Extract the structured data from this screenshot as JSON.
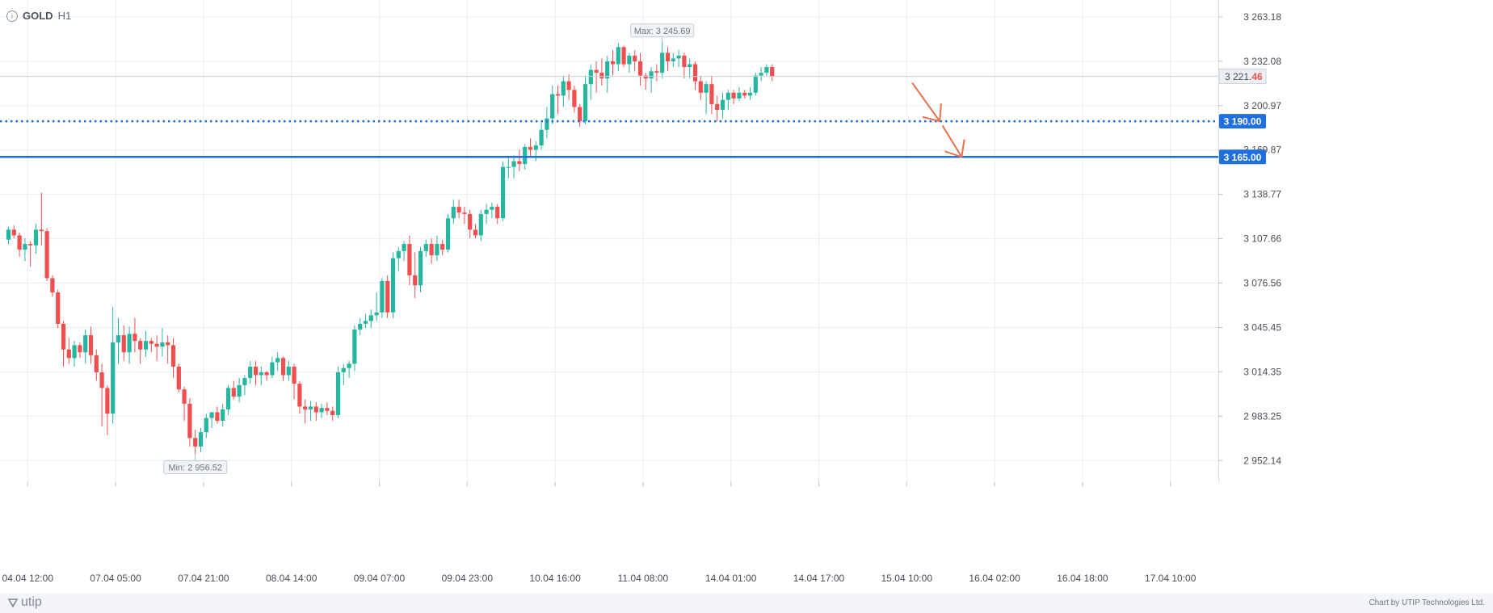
{
  "header": {
    "symbol": "GOLD",
    "timeframe": "H1",
    "info_icon": "info-icon"
  },
  "footer": {
    "brand": "utip",
    "brand_icon": "utip-logo-icon",
    "credit": "Chart by UTIP Technologies Ltd."
  },
  "colors": {
    "bull": "#26b6a0",
    "bear": "#ef4f4f",
    "grid": "#e9edf2",
    "level": "#1f6fe0",
    "arrow": "#e8704a",
    "axis_text": "#4a4f55"
  },
  "chart_data": {
    "type": "candlestick",
    "title": "",
    "xlabel": "",
    "ylabel": "",
    "ylim": [
      2937.0,
      3275.0
    ],
    "y_ticks": [
      "3 263.18",
      "3 232.08",
      "3 200.97",
      "3 169.87",
      "3 138.77",
      "3 107.66",
      "3 076.56",
      "3 045.45",
      "3 014.35",
      "2 983.25",
      "2 952.14"
    ],
    "y_tick_values": [
      3263.18,
      3232.08,
      3200.97,
      3169.87,
      3138.77,
      3107.66,
      3076.56,
      3045.45,
      3014.35,
      2983.25,
      2952.14
    ],
    "x_ticks": [
      "04.04 12:00",
      "07.04 05:00",
      "07.04 21:00",
      "08.04 14:00",
      "09.04 07:00",
      "09.04 23:00",
      "10.04 16:00",
      "11.04 08:00",
      "14.04 01:00",
      "14.04 17:00",
      "15.04 10:00",
      "16.04 02:00",
      "16.04 18:00",
      "17.04 10:00"
    ],
    "x_tick_bar_index": [
      3.5,
      19.5,
      35.5,
      51.5,
      67.5,
      83.5,
      99.5,
      115.5,
      131.5,
      147.5,
      163.5,
      179.5,
      195.5,
      211.5
    ],
    "current_price": "3 221.46",
    "current_price_value": 3221.46,
    "levels": [
      {
        "label": "3 190.00",
        "value": 3190.0,
        "style": "dotted"
      },
      {
        "label": "3 165.00",
        "value": 3165.0,
        "style": "solid"
      }
    ],
    "annotations": {
      "max": {
        "label": "Max: 3 245.69",
        "value": 3245.69
      },
      "min": {
        "label": "Min: 2 956.52",
        "value": 2956.52
      }
    },
    "projection_arrows": [
      {
        "from_bar": 164.5,
        "from_price": 3217.0,
        "to_bar": 169.5,
        "to_price": 3190.0
      },
      {
        "from_bar": 170.0,
        "from_price": 3187.0,
        "to_bar": 173.5,
        "to_price": 3165.0
      }
    ],
    "candles": [
      [
        3107,
        3116,
        3104,
        3114
      ],
      [
        3114,
        3117,
        3108,
        3110
      ],
      [
        3110,
        3112,
        3095,
        3100
      ],
      [
        3100,
        3108,
        3092,
        3104
      ],
      [
        3104,
        3106,
        3088,
        3103
      ],
      [
        3103,
        3118,
        3097,
        3114
      ],
      [
        3114,
        3140,
        3103,
        3113
      ],
      [
        3113,
        3115,
        3078,
        3080
      ],
      [
        3080,
        3082,
        3067,
        3070
      ],
      [
        3070,
        3072,
        3045,
        3048
      ],
      [
        3048,
        3050,
        3018,
        3030
      ],
      [
        3030,
        3038,
        3020,
        3024
      ],
      [
        3024,
        3036,
        3018,
        3033
      ],
      [
        3033,
        3035,
        3024,
        3028
      ],
      [
        3028,
        3044,
        3020,
        3040
      ],
      [
        3040,
        3046,
        3020,
        3026
      ],
      [
        3026,
        3030,
        3008,
        3014
      ],
      [
        3014,
        3020,
        2976,
        3003
      ],
      [
        3003,
        3005,
        2970,
        2985
      ],
      [
        2985,
        3060,
        2978,
        3035
      ],
      [
        3035,
        3052,
        3020,
        3040
      ],
      [
        3040,
        3047,
        3022,
        3028
      ],
      [
        3028,
        3046,
        3020,
        3041
      ],
      [
        3041,
        3052,
        3028,
        3036
      ],
      [
        3036,
        3038,
        3020,
        3030
      ],
      [
        3030,
        3043,
        3025,
        3036
      ],
      [
        3036,
        3038,
        3028,
        3034
      ],
      [
        3034,
        3040,
        3022,
        3032
      ],
      [
        3032,
        3045,
        3025,
        3035
      ],
      [
        3035,
        3040,
        3020,
        3033
      ],
      [
        3033,
        3038,
        3010,
        3018
      ],
      [
        3018,
        3020,
        3000,
        3002
      ],
      [
        3002,
        3004,
        2980,
        2992
      ],
      [
        2992,
        2996,
        2962,
        2968
      ],
      [
        2968,
        2974,
        2956.52,
        2962
      ],
      [
        2962,
        2975,
        2958,
        2972
      ],
      [
        2972,
        2985,
        2968,
        2982
      ],
      [
        2982,
        2986,
        2975,
        2986
      ],
      [
        2986,
        2990,
        2978,
        2980
      ],
      [
        2980,
        2992,
        2976,
        2988
      ],
      [
        2988,
        3005,
        2984,
        3003
      ],
      [
        3003,
        3008,
        2995,
        2997
      ],
      [
        2997,
        3010,
        2993,
        3005
      ],
      [
        3005,
        3012,
        2998,
        3010
      ],
      [
        3010,
        3022,
        3006,
        3018
      ],
      [
        3018,
        3022,
        3005,
        3012
      ],
      [
        3012,
        3018,
        3005,
        3014
      ],
      [
        3014,
        3015,
        3008,
        3012
      ],
      [
        3012,
        3025,
        3010,
        3021
      ],
      [
        3021,
        3028,
        3015,
        3024
      ],
      [
        3024,
        3025,
        3008,
        3012
      ],
      [
        3012,
        3022,
        3008,
        3018
      ],
      [
        3018,
        3020,
        2995,
        3006
      ],
      [
        3006,
        3008,
        2985,
        2990
      ],
      [
        2990,
        2995,
        2978,
        2988
      ],
      [
        2988,
        2994,
        2980,
        2990
      ],
      [
        2990,
        2993,
        2980,
        2986
      ],
      [
        2986,
        2992,
        2982,
        2989
      ],
      [
        2989,
        2993,
        2984,
        2987
      ],
      [
        2987,
        2990,
        2980,
        2984
      ],
      [
        2984,
        3018,
        2982,
        3014
      ],
      [
        3014,
        3020,
        3005,
        3017
      ],
      [
        3017,
        3022,
        3010,
        3020
      ],
      [
        3020,
        3047,
        3015,
        3044
      ],
      [
        3044,
        3052,
        3040,
        3048
      ],
      [
        3048,
        3055,
        3045,
        3050
      ],
      [
        3050,
        3058,
        3045,
        3054
      ],
      [
        3054,
        3070,
        3050,
        3056
      ],
      [
        3056,
        3080,
        3052,
        3078
      ],
      [
        3078,
        3082,
        3052,
        3056
      ],
      [
        3056,
        3098,
        3052,
        3094
      ],
      [
        3094,
        3102,
        3085,
        3099
      ],
      [
        3099,
        3106,
        3092,
        3104
      ],
      [
        3104,
        3110,
        3075,
        3082
      ],
      [
        3082,
        3098,
        3066,
        3075
      ],
      [
        3075,
        3102,
        3070,
        3099
      ],
      [
        3099,
        3107,
        3095,
        3104
      ],
      [
        3104,
        3108,
        3090,
        3096
      ],
      [
        3096,
        3110,
        3092,
        3104
      ],
      [
        3104,
        3107,
        3096,
        3100
      ],
      [
        3100,
        3125,
        3098,
        3122
      ],
      [
        3122,
        3135,
        3118,
        3130
      ],
      [
        3130,
        3135,
        3122,
        3126
      ],
      [
        3126,
        3130,
        3118,
        3125
      ],
      [
        3125,
        3128,
        3108,
        3114
      ],
      [
        3114,
        3118,
        3108,
        3110
      ],
      [
        3110,
        3128,
        3106,
        3125
      ],
      [
        3125,
        3132,
        3118,
        3128
      ],
      [
        3128,
        3133,
        3122,
        3130
      ],
      [
        3130,
        3132,
        3118,
        3122
      ],
      [
        3122,
        3162,
        3120,
        3158
      ],
      [
        3158,
        3165,
        3150,
        3158
      ],
      [
        3158,
        3166,
        3150,
        3162
      ],
      [
        3162,
        3170,
        3155,
        3160
      ],
      [
        3160,
        3174,
        3156,
        3172
      ],
      [
        3172,
        3178,
        3165,
        3170
      ],
      [
        3170,
        3176,
        3162,
        3173
      ],
      [
        3173,
        3190,
        3170,
        3184
      ],
      [
        3184,
        3200,
        3178,
        3192
      ],
      [
        3192,
        3215,
        3188,
        3209
      ],
      [
        3209,
        3215,
        3195,
        3208
      ],
      [
        3208,
        3222,
        3200,
        3218
      ],
      [
        3218,
        3223,
        3205,
        3212
      ],
      [
        3212,
        3215,
        3196,
        3200
      ],
      [
        3200,
        3202,
        3186,
        3190
      ],
      [
        3190,
        3222,
        3188,
        3216
      ],
      [
        3216,
        3230,
        3205,
        3226
      ],
      [
        3226,
        3232,
        3210,
        3224
      ],
      [
        3224,
        3234,
        3215,
        3220
      ],
      [
        3220,
        3236,
        3210,
        3232
      ],
      [
        3232,
        3240,
        3222,
        3230
      ],
      [
        3230,
        3245,
        3225,
        3242
      ],
      [
        3242,
        3243,
        3228,
        3230
      ],
      [
        3230,
        3238,
        3224,
        3236
      ],
      [
        3236,
        3240,
        3225,
        3232
      ],
      [
        3232,
        3238,
        3215,
        3222
      ],
      [
        3222,
        3224,
        3212,
        3220
      ],
      [
        3220,
        3228,
        3210,
        3225
      ],
      [
        3225,
        3230,
        3218,
        3224
      ],
      [
        3224,
        3245.69,
        3220,
        3238
      ],
      [
        3238,
        3242,
        3225,
        3232
      ],
      [
        3232,
        3238,
        3228,
        3234
      ],
      [
        3234,
        3240,
        3228,
        3236
      ],
      [
        3236,
        3238,
        3220,
        3228
      ],
      [
        3228,
        3234,
        3220,
        3230
      ],
      [
        3230,
        3232,
        3212,
        3218
      ],
      [
        3218,
        3222,
        3205,
        3210
      ],
      [
        3210,
        3218,
        3195,
        3216
      ],
      [
        3216,
        3222,
        3195,
        3202
      ],
      [
        3202,
        3208,
        3190,
        3198
      ],
      [
        3198,
        3210,
        3192,
        3205
      ],
      [
        3205,
        3212,
        3198,
        3210
      ],
      [
        3210,
        3212,
        3202,
        3206
      ],
      [
        3206,
        3214,
        3204,
        3210
      ],
      [
        3210,
        3212,
        3206,
        3208
      ],
      [
        3208,
        3214,
        3205,
        3210
      ],
      [
        3210,
        3224,
        3208,
        3222
      ],
      [
        3222,
        3228,
        3218,
        3224
      ],
      [
        3224,
        3230,
        3222,
        3228
      ],
      [
        3228,
        3230,
        3218,
        3221.46
      ]
    ]
  }
}
